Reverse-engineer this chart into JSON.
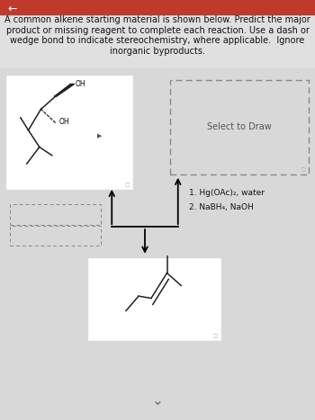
{
  "title_text": "A common alkene starting material is shown below. Predict the major\nproduct or missing reagent to complete each reaction. Use a dash or\nwedge bond to indicate stereochemistry, where applicable.  Ignore\ninorganic byproducts.",
  "title_fontsize": 7.0,
  "header_bg": "#c0392b",
  "reagent_line1": "1. Hg(OAc)₂, water",
  "reagent_line2": "2. NaBH₄, NaOH",
  "select_to_draw": "Select to Draw",
  "body_bg": "#d8d8d8",
  "white": "#ffffff",
  "dark_line": "#222222",
  "gray_box": "#888888",
  "text_color": "#111111",
  "light_gray": "#aaaaaa"
}
